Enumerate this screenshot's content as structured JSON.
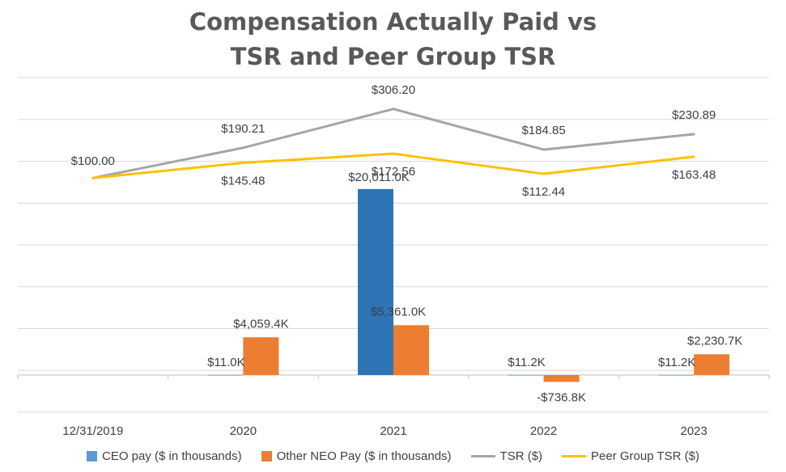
{
  "chart_data": {
    "type": "bar",
    "title_lines": [
      "Compensation Actually Paid vs",
      "TSR and Peer Group TSR"
    ],
    "categories": [
      "12/31/2019",
      "2020",
      "2021",
      "2022",
      "2023"
    ],
    "series": [
      {
        "name": "CEO pay ($ in thousands)",
        "kind": "bar",
        "color": "#2E75B6",
        "values": [
          null,
          11.0,
          20011.0,
          11.2,
          11.2
        ],
        "labels": [
          "",
          "$11.0K",
          "$20,011.0K",
          "$11.2K",
          "$11.2K"
        ]
      },
      {
        "name": "Other NEO Pay ($ in thousands)",
        "kind": "bar",
        "color": "#ED7D31",
        "values": [
          null,
          4059.4,
          5361.0,
          -736.8,
          2230.7
        ],
        "labels": [
          "",
          "$4,059.4K",
          "$5,361.0K",
          "-$736.8K",
          "$2,230.7K"
        ]
      },
      {
        "name": "TSR ($)",
        "kind": "line",
        "color": "#A5A5A5",
        "values": [
          100.0,
          190.21,
          306.2,
          184.85,
          230.89
        ],
        "labels": [
          "$100.00",
          "$190.21",
          "$306.20",
          "$184.85",
          "$230.89"
        ]
      },
      {
        "name": "Peer Group TSR ($)",
        "kind": "line",
        "color": "#FFC000",
        "values": [
          100.0,
          145.48,
          172.56,
          112.44,
          163.48
        ],
        "labels": [
          "",
          "$145.48",
          "$172.56",
          "$112.44",
          "$163.48"
        ]
      }
    ],
    "bar_ylim": [
      -4000,
      32000
    ],
    "line_ylim": [
      -600,
      400
    ],
    "grid": true,
    "legend_position": "bottom"
  }
}
